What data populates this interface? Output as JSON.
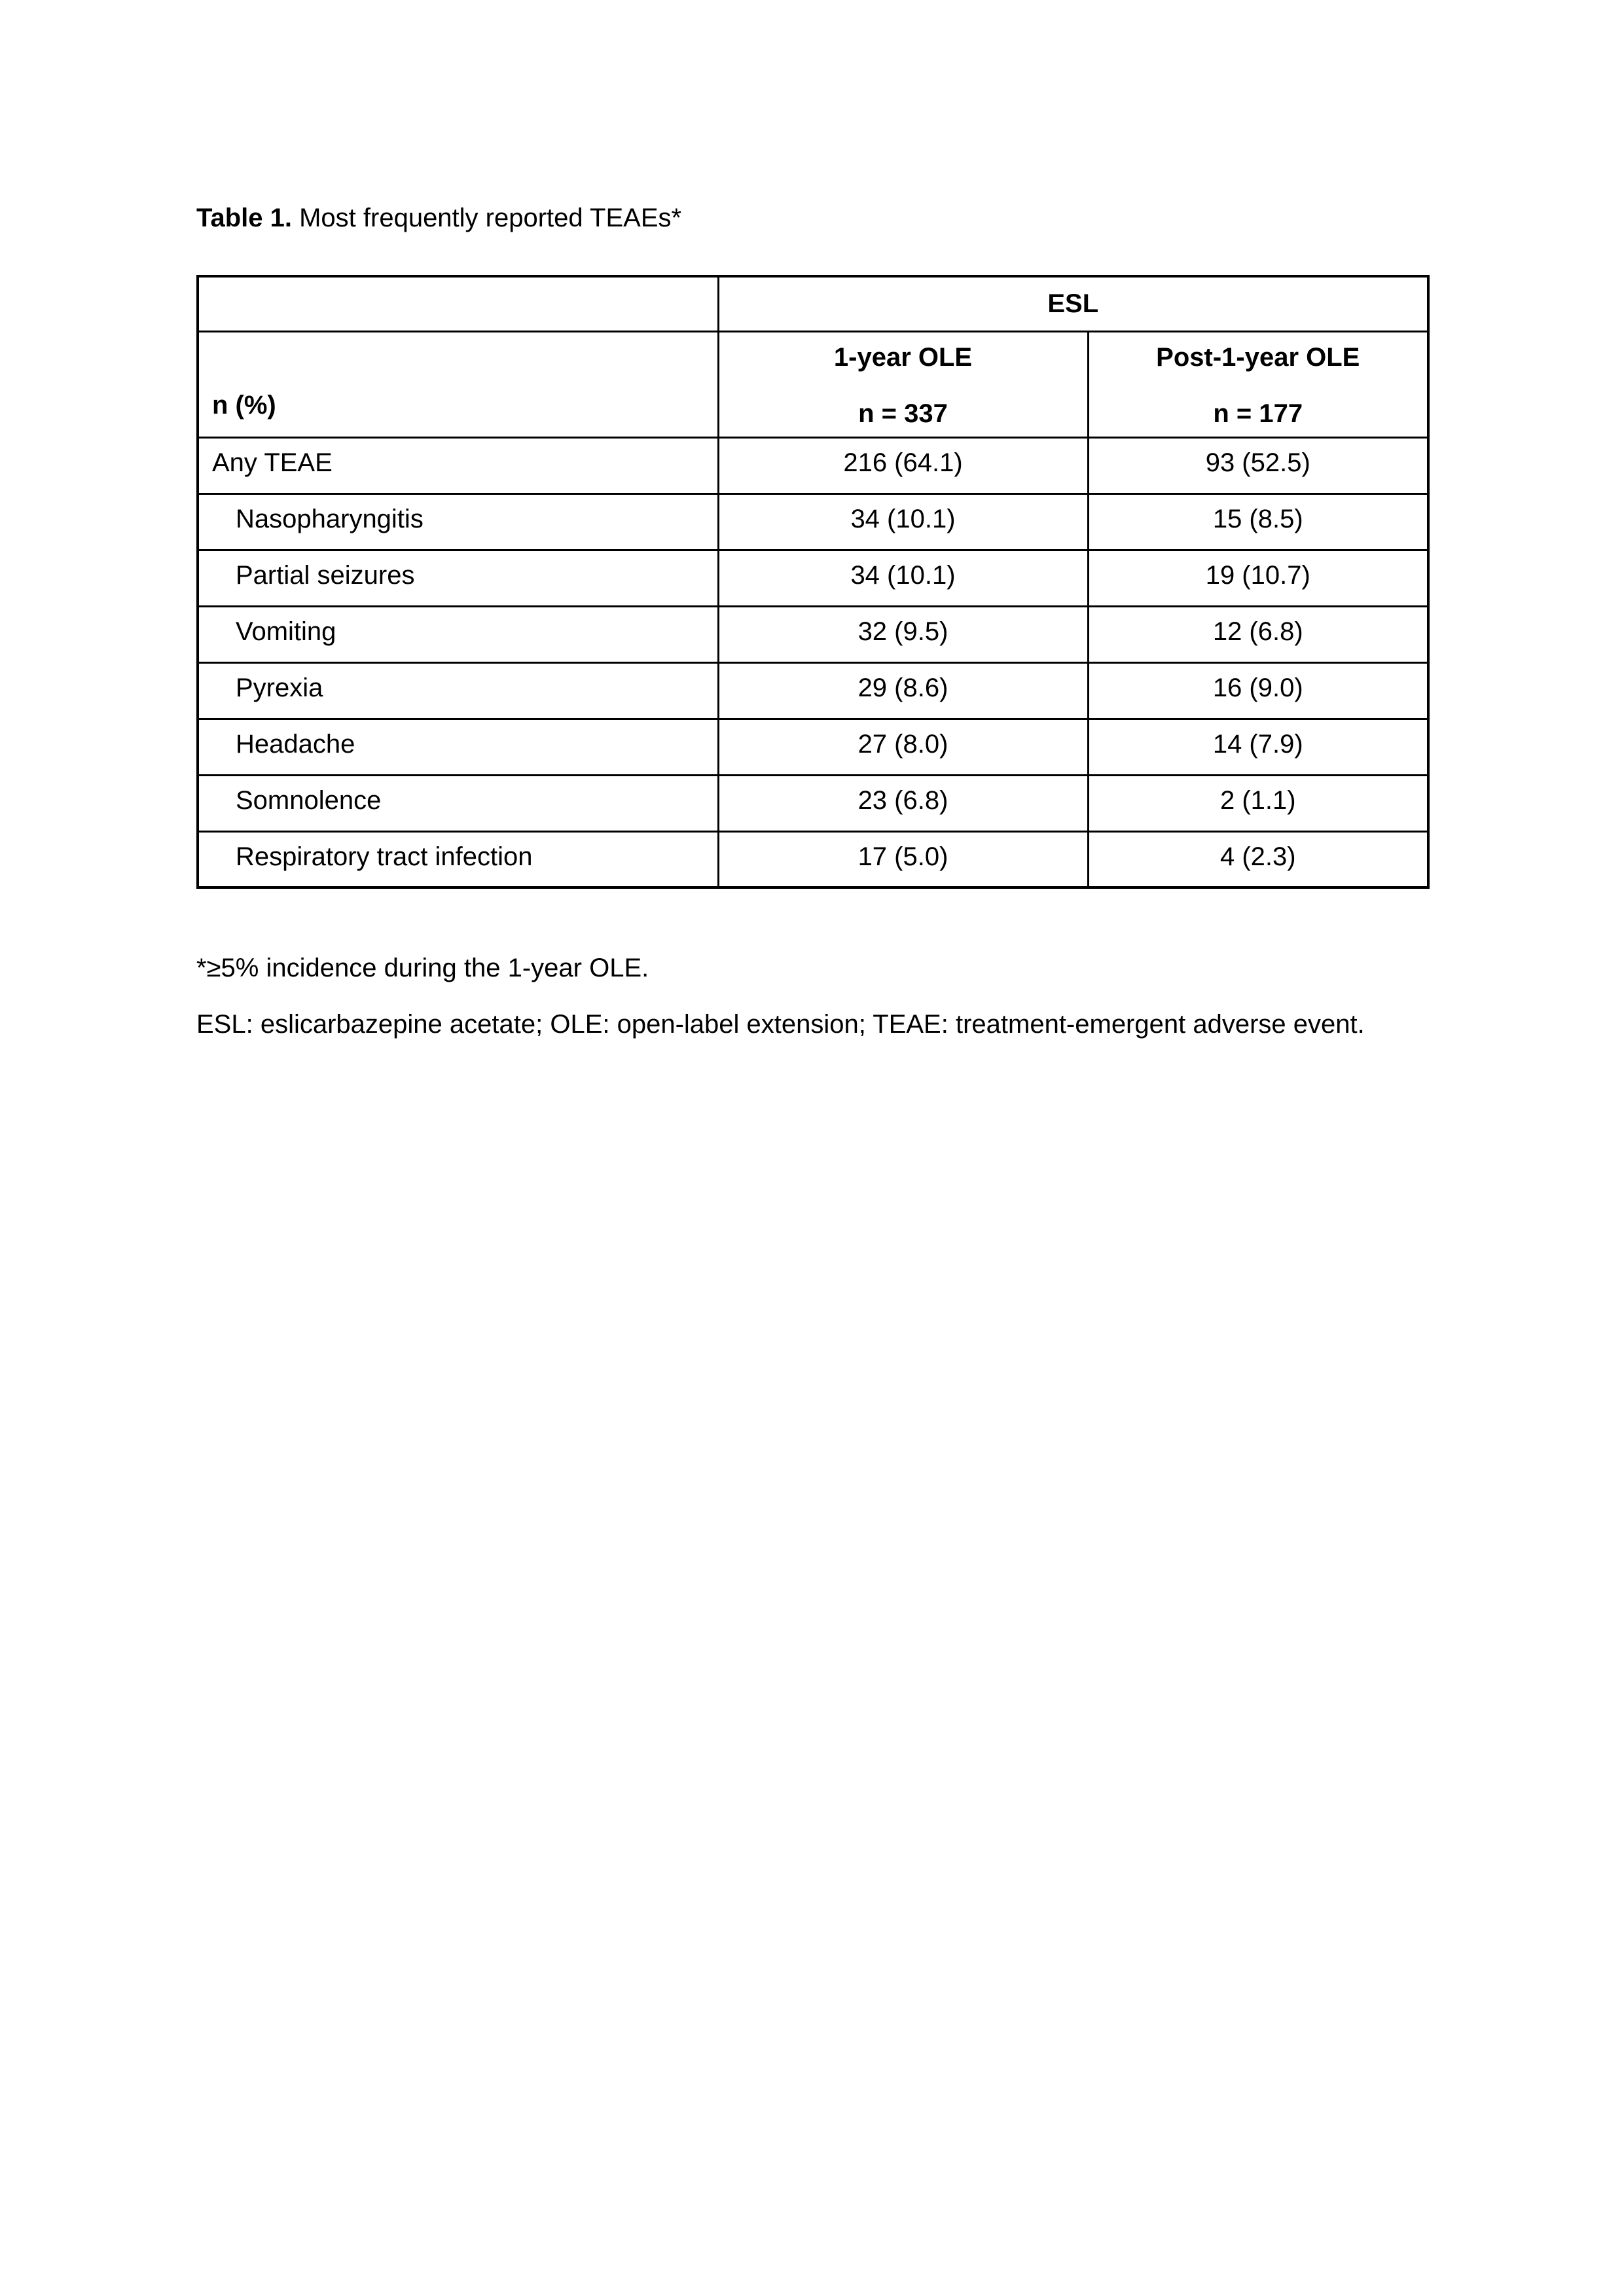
{
  "title": {
    "label": "Table 1.",
    "text": " Most frequently reported TEAEs*"
  },
  "table": {
    "group_header": "ESL",
    "stub_header": "n (%)",
    "col_headers": [
      {
        "line1": "1-year OLE",
        "line2": "n = 337"
      },
      {
        "line1": "Post-1-year OLE",
        "line2": "n = 177"
      }
    ],
    "rows": [
      {
        "label": "Any TEAE",
        "year1": "216 (64.1)",
        "post1": "93 (52.5)"
      },
      {
        "label": "Nasopharyngitis",
        "year1": "34 (10.1)",
        "post1": "15 (8.5)"
      },
      {
        "label": "Partial seizures",
        "year1": "34 (10.1)",
        "post1": "19 (10.7)"
      },
      {
        "label": "Vomiting",
        "year1": "32 (9.5)",
        "post1": "12 (6.8)"
      },
      {
        "label": "Pyrexia",
        "year1": "29 (8.6)",
        "post1": "16 (9.0)"
      },
      {
        "label": "Headache",
        "year1": "27 (8.0)",
        "post1": "14 (7.9)"
      },
      {
        "label": "Somnolence",
        "year1": "23 (6.8)",
        "post1": "2 (1.1)"
      },
      {
        "label": "Respiratory tract infection",
        "year1": "17 (5.0)",
        "post1": "4 (2.3)"
      }
    ]
  },
  "footnotes": {
    "incidence": "*≥5% incidence during the 1-year OLE.",
    "abbreviations": "ESL: eslicarbazepine acetate; OLE: open-label extension; TEAE: treatment-emergent adverse event."
  }
}
